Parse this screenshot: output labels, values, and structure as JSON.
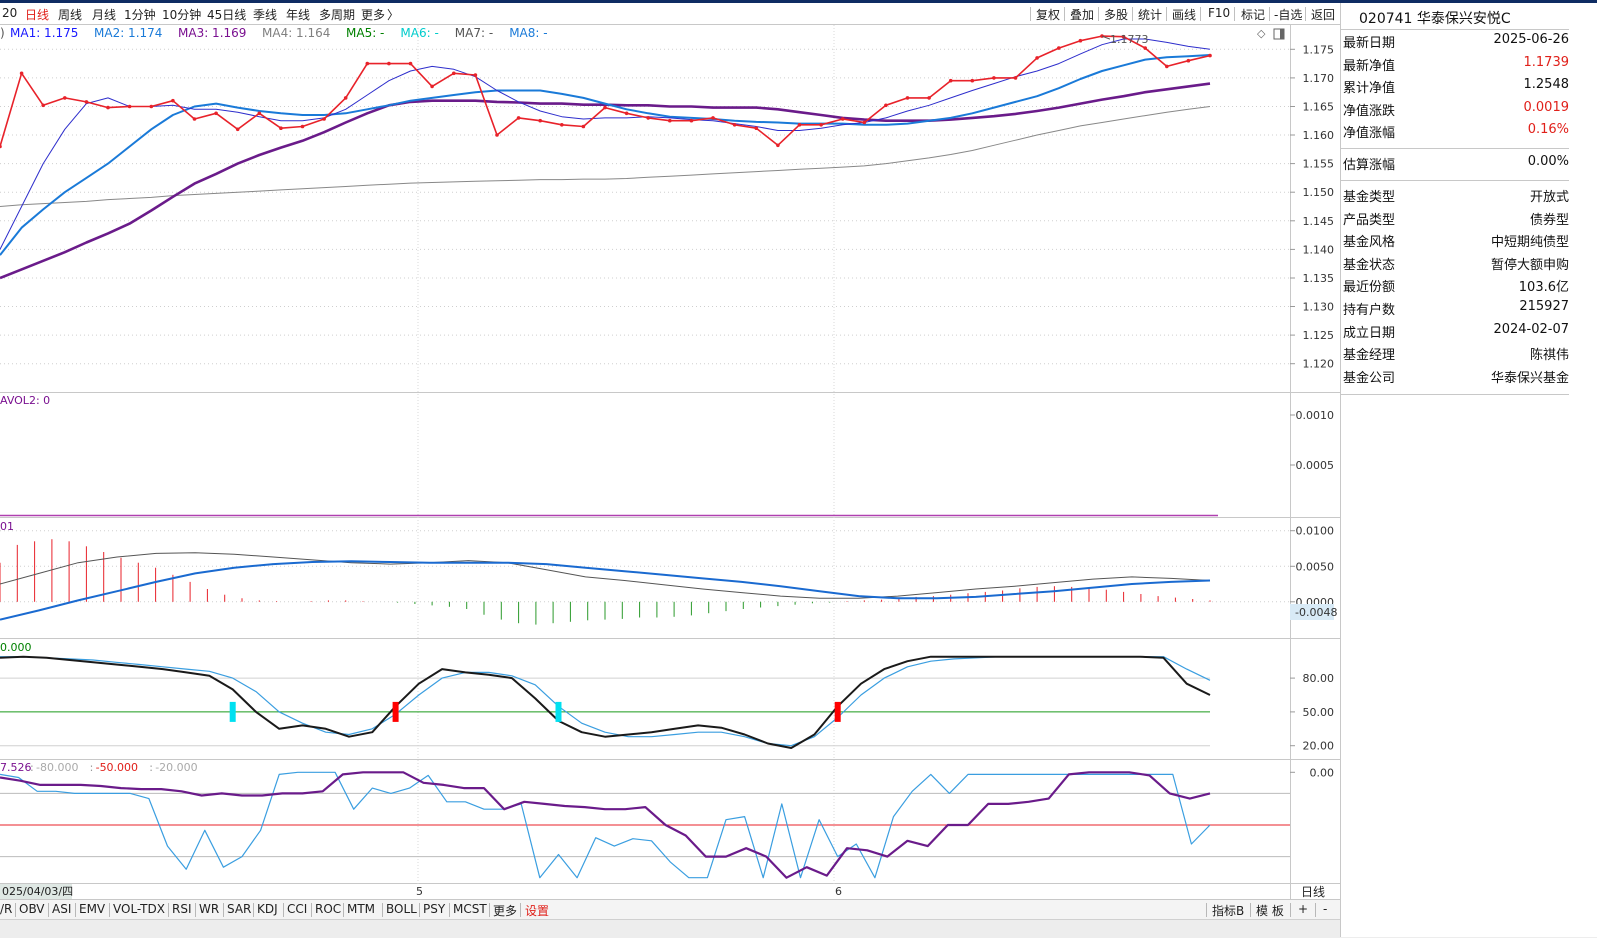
{
  "period_bar": {
    "items": [
      "20",
      "日线",
      "周线",
      "月线",
      "1分钟",
      "10分钟",
      "45日线",
      "季线",
      "年线",
      "多周期",
      "更多"
    ],
    "active_index": 1,
    "more_arrow": "〉"
  },
  "toolbar": {
    "buttons": [
      "复权",
      "叠加",
      "多股",
      "统计",
      "画线",
      "F10",
      "标记",
      "-自选",
      "返回"
    ]
  },
  "ma_legend": {
    "prefix": ")",
    "items": [
      {
        "label": "MA1: 1.175",
        "color": "#1a1aff"
      },
      {
        "label": "MA2: 1.174",
        "color": "#1a7ad8"
      },
      {
        "label": "MA3: 1.169",
        "color": "#7a1090"
      },
      {
        "label": "MA4: 1.164",
        "color": "#808080"
      },
      {
        "label": "MA5: -",
        "color": "#008000"
      },
      {
        "label": "MA6: -",
        "color": "#00cccc"
      },
      {
        "label": "MA7: -",
        "color": "#555555"
      },
      {
        "label": "MA8: -",
        "color": "#1a7ad8"
      }
    ]
  },
  "price_panel": {
    "ylim": [
      1.1175,
      1.1775
    ],
    "ticks": [
      "1.175",
      "1.170",
      "1.165",
      "1.160",
      "1.155",
      "1.150",
      "1.145",
      "1.140",
      "1.135",
      "1.130",
      "1.125",
      "1.120"
    ],
    "max_label": "1.1773"
  },
  "vol_panel": {
    "legend": "AVOL2: 0",
    "ticks": [
      "0.0010",
      "0.0005"
    ]
  },
  "macd_panel": {
    "legend": "01",
    "ticks": [
      "0.0100",
      "0.0050",
      "0.0000"
    ],
    "current_label": "-0.0048"
  },
  "kdj_panel": {
    "legend": "0.000",
    "ticks": [
      "80.00",
      "50.00",
      "20.00"
    ]
  },
  "wr_panel": {
    "legend_value": "7.526",
    "legend_items": [
      {
        "label": "-80.000",
        "color": "#aaaaaa"
      },
      {
        "label": "-50.000",
        "color": "#e0201a"
      },
      {
        "label": "-20.000",
        "color": "#aaaaaa"
      }
    ],
    "ticks": [
      "0.00"
    ]
  },
  "x_axis": {
    "date_label": "025/04/03/四",
    "month_labels": [
      "5",
      "6"
    ],
    "period_label": "日线"
  },
  "indicator_tabs": {
    "items": [
      "/R",
      "OBV",
      "ASI",
      "EMV",
      "VOL-TDX",
      "RSI",
      "WR",
      "SAR",
      "KDJ",
      "CCI",
      "ROC",
      "MTM",
      "BOLL",
      "PSY",
      "MCST",
      "更多",
      "设置"
    ],
    "right_items": [
      "指标B",
      "模 板",
      "+",
      "-"
    ]
  },
  "info_panel": {
    "title": "020741 华泰保兴安悦C",
    "rows1": [
      {
        "label": "最新日期",
        "value": "2025-06-26",
        "red": false
      },
      {
        "label": "最新净值",
        "value": "1.1739",
        "red": true
      },
      {
        "label": "累计净值",
        "value": "1.2548",
        "red": false
      },
      {
        "label": "净值涨跌",
        "value": "0.0019",
        "red": true
      },
      {
        "label": "净值涨幅",
        "value": "0.16%",
        "red": true
      }
    ],
    "rows2": [
      {
        "label": "估算涨幅",
        "value": "0.00%",
        "red": false
      }
    ],
    "rows3": [
      {
        "label": "基金类型",
        "value": "开放式",
        "red": false
      },
      {
        "label": "产品类型",
        "value": "债券型",
        "red": false
      },
      {
        "label": "基金风格",
        "value": "中短期纯债型",
        "red": false
      },
      {
        "label": "基金状态",
        "value": "暂停大额申购",
        "red": false
      },
      {
        "label": "最近份额",
        "value": "103.6亿",
        "red": false
      },
      {
        "label": "持有户数",
        "value": "215927",
        "red": false
      },
      {
        "label": "成立日期",
        "value": "2024-02-07",
        "red": false
      },
      {
        "label": "基金经理",
        "value": "陈祺伟",
        "red": false
      },
      {
        "label": "基金公司",
        "value": "华泰保兴基金",
        "red": false
      }
    ]
  },
  "chart_data": [
    {
      "type": "line",
      "name": "price",
      "ylim": [
        1.1175,
        1.1775
      ],
      "series": [
        {
          "name": "NAV",
          "color": "#e8222a",
          "values": [
            1.158,
            1.1708,
            1.1652,
            1.1665,
            1.1658,
            1.1648,
            1.165,
            1.165,
            1.166,
            1.1628,
            1.1638,
            1.161,
            1.1638,
            1.1612,
            1.1615,
            1.1628,
            1.1665,
            1.1725,
            1.1725,
            1.1725,
            1.1685,
            1.1708,
            1.1705,
            1.16,
            1.163,
            1.1625,
            1.1618,
            1.1615,
            1.1648,
            1.1638,
            1.163,
            1.1625,
            1.1625,
            1.163,
            1.1618,
            1.1612,
            1.1582,
            1.1618,
            1.1618,
            1.1628,
            1.1622,
            1.1652,
            1.1665,
            1.1665,
            1.1695,
            1.1695,
            1.17,
            1.17,
            1.1735,
            1.1752,
            1.1765,
            1.1773,
            1.1772,
            1.1752,
            1.172,
            1.173,
            1.1739
          ]
        },
        {
          "name": "MA1",
          "color": "#2e2ecc",
          "values": [
            1.14,
            1.1475,
            1.155,
            1.161,
            1.1655,
            1.1665,
            1.165,
            1.165,
            1.1652,
            1.1645,
            1.1645,
            1.164,
            1.1632,
            1.1625,
            1.1625,
            1.163,
            1.1645,
            1.167,
            1.1695,
            1.1712,
            1.172,
            1.1715,
            1.1702,
            1.1678,
            1.1658,
            1.1642,
            1.1632,
            1.1628,
            1.163,
            1.163,
            1.1632,
            1.163,
            1.1627,
            1.1625,
            1.162,
            1.1615,
            1.1608,
            1.1608,
            1.1612,
            1.1618,
            1.1622,
            1.163,
            1.1642,
            1.1652,
            1.1665,
            1.1678,
            1.169,
            1.1702,
            1.1712,
            1.1725,
            1.1742,
            1.1758,
            1.1768,
            1.1768,
            1.1762,
            1.1755,
            1.175
          ]
        },
        {
          "name": "MA2",
          "color": "#1a7ad8",
          "values": [
            1.139,
            1.1438,
            1.147,
            1.15,
            1.1525,
            1.155,
            1.158,
            1.161,
            1.1635,
            1.165,
            1.1655,
            1.1648,
            1.1642,
            1.1638,
            1.1635,
            1.1635,
            1.1638,
            1.1645,
            1.1652,
            1.166,
            1.1665,
            1.167,
            1.1675,
            1.1678,
            1.1678,
            1.1678,
            1.1672,
            1.1665,
            1.1655,
            1.1645,
            1.1638,
            1.1632,
            1.163,
            1.1628,
            1.1625,
            1.1623,
            1.1622,
            1.162,
            1.162,
            1.162,
            1.1618,
            1.1618,
            1.162,
            1.1625,
            1.163,
            1.1638,
            1.1648,
            1.1658,
            1.1668,
            1.1682,
            1.1698,
            1.1712,
            1.1722,
            1.1732,
            1.1736,
            1.1738,
            1.174
          ]
        },
        {
          "name": "MA3",
          "color": "#6a1b8a",
          "values": [
            1.135,
            1.1365,
            1.138,
            1.1395,
            1.1412,
            1.1428,
            1.1445,
            1.1468,
            1.1492,
            1.1515,
            1.1532,
            1.155,
            1.1565,
            1.1578,
            1.159,
            1.1605,
            1.1622,
            1.1638,
            1.1652,
            1.1658,
            1.166,
            1.166,
            1.166,
            1.1658,
            1.1657,
            1.1655,
            1.1655,
            1.1653,
            1.1653,
            1.1652,
            1.1652,
            1.165,
            1.165,
            1.1648,
            1.1648,
            1.1648,
            1.1645,
            1.164,
            1.1635,
            1.163,
            1.1627,
            1.1625,
            1.1625,
            1.1625,
            1.1627,
            1.163,
            1.1633,
            1.1637,
            1.1642,
            1.1648,
            1.1655,
            1.1662,
            1.1668,
            1.1675,
            1.168,
            1.1685,
            1.169
          ]
        },
        {
          "name": "MA4",
          "color": "#888888",
          "values": [
            1.1475,
            1.1478,
            1.148,
            1.1482,
            1.1484,
            1.1487,
            1.1489,
            1.1491,
            1.1494,
            1.1496,
            1.1498,
            1.15,
            1.1502,
            1.1504,
            1.1506,
            1.1508,
            1.151,
            1.1512,
            1.1514,
            1.1516,
            1.1517,
            1.1518,
            1.1519,
            1.152,
            1.1521,
            1.1522,
            1.1522,
            1.1523,
            1.1523,
            1.1524,
            1.1526,
            1.1528,
            1.153,
            1.1532,
            1.1534,
            1.1536,
            1.1538,
            1.154,
            1.1542,
            1.1544,
            1.1546,
            1.155,
            1.1555,
            1.156,
            1.1566,
            1.1573,
            1.1582,
            1.1591,
            1.16,
            1.1608,
            1.1616,
            1.1622,
            1.1628,
            1.1634,
            1.164,
            1.1645,
            1.165
          ]
        }
      ]
    },
    {
      "type": "line",
      "name": "avol",
      "ylim": [
        0,
        0.0012
      ],
      "series": [
        {
          "name": "AVOL2",
          "values": [
            0,
            0
          ]
        }
      ]
    },
    {
      "type": "bar",
      "name": "macd",
      "ylim": [
        -0.0048,
        0.0115
      ],
      "bars": [
        0.0055,
        0.008,
        0.0085,
        0.0088,
        0.0085,
        0.0078,
        0.007,
        0.0062,
        0.0055,
        0.0048,
        0.0038,
        0.0028,
        0.0018,
        0.001,
        0.0005,
        0.0002,
        0.0001,
        0.0,
        0.0001,
        0.0002,
        0.0002,
        0.0001,
        0.0,
        -0.0001,
        -0.0003,
        -0.0005,
        -0.0007,
        -0.001,
        -0.0018,
        -0.0025,
        -0.003,
        -0.0032,
        -0.003,
        -0.0028,
        -0.0026,
        -0.0025,
        -0.0024,
        -0.0022,
        -0.0022,
        -0.0021,
        -0.0019,
        -0.0016,
        -0.0013,
        -0.001,
        -0.0008,
        -0.0006,
        -0.0004,
        -0.0002,
        -0.0001,
        0.0001,
        0.0002,
        0.0003,
        0.0005,
        0.0007,
        0.0008,
        0.001,
        0.0012,
        0.0014,
        0.0016,
        0.0019,
        0.0021,
        0.0022,
        0.0021,
        0.0019,
        0.0017,
        0.0014,
        0.0011,
        0.0008,
        0.0006,
        0.0004,
        0.0002
      ],
      "series": [
        {
          "name": "DIF",
          "color": "#555555",
          "values": [
            0.0025,
            0.004,
            0.0055,
            0.0063,
            0.0068,
            0.0069,
            0.0067,
            0.0063,
            0.0059,
            0.0055,
            0.0053,
            0.0055,
            0.0058,
            0.0055,
            0.0045,
            0.0035,
            0.003,
            0.0024,
            0.0018,
            0.0013,
            0.0008,
            0.0005,
            0.0005,
            0.0008,
            0.0013,
            0.0018,
            0.0022,
            0.0027,
            0.0032,
            0.0035,
            0.0033,
            0.003
          ]
        },
        {
          "name": "DEA",
          "color": "#1a6ad0",
          "values": [
            -0.0025,
            -0.0012,
            0.0002,
            0.0015,
            0.0028,
            0.004,
            0.0048,
            0.0053,
            0.0056,
            0.0057,
            0.0056,
            0.0055,
            0.0055,
            0.0055,
            0.0053,
            0.0048,
            0.0043,
            0.0038,
            0.0033,
            0.0028,
            0.0022,
            0.0015,
            0.0008,
            0.0005,
            0.0005,
            0.0007,
            0.0011,
            0.0015,
            0.002,
            0.0025,
            0.0028,
            0.003
          ]
        }
      ]
    },
    {
      "type": "line",
      "name": "kdj",
      "ylim": [
        10,
        112
      ],
      "reference_lines": [
        80,
        50,
        20
      ],
      "series": [
        {
          "name": "K",
          "color": "#1a1a1a",
          "values": [
            98,
            99,
            98,
            96,
            94,
            92,
            90,
            88,
            85,
            82,
            70,
            50,
            35,
            38,
            35,
            28,
            32,
            55,
            75,
            88,
            85,
            83,
            80,
            62,
            42,
            32,
            28,
            30,
            32,
            35,
            38,
            36,
            30,
            22,
            18,
            30,
            55,
            75,
            88,
            95,
            99,
            99,
            99,
            99,
            99,
            99,
            99,
            99,
            99,
            99,
            98,
            75,
            65
          ]
        },
        {
          "name": "D",
          "color": "#3a9ee0",
          "values": [
            99,
            99,
            98,
            97,
            96,
            94,
            92,
            90,
            88,
            86,
            80,
            68,
            50,
            40,
            32,
            30,
            35,
            48,
            65,
            80,
            85,
            85,
            82,
            74,
            55,
            40,
            32,
            28,
            28,
            30,
            32,
            32,
            28,
            22,
            20,
            28,
            45,
            65,
            80,
            90,
            95,
            97,
            98,
            99,
            99,
            99,
            99,
            99,
            99,
            99,
            99,
            88,
            78
          ]
        }
      ],
      "cross_marks": [
        {
          "index": 10,
          "type": "down"
        },
        {
          "index": 17,
          "type": "up"
        },
        {
          "index": 24,
          "type": "down"
        },
        {
          "index": 36,
          "type": "up"
        }
      ]
    },
    {
      "type": "line",
      "name": "wr",
      "ylim": [
        -105,
        5
      ],
      "reference_lines": [
        -80,
        -50,
        -20
      ],
      "series": [
        {
          "name": "WR1",
          "color": "#3a9ee0",
          "values": [
            -2,
            -5,
            -18,
            -18,
            -20,
            -20,
            -20,
            -20,
            -25,
            -70,
            -92,
            -55,
            -90,
            -80,
            -55,
            -2,
            0,
            0,
            0,
            -35,
            -15,
            -20,
            -15,
            -3,
            -28,
            -28,
            -35,
            -35,
            -30,
            -100,
            -78,
            -100,
            -62,
            -70,
            -63,
            -65,
            -85,
            -100,
            -100,
            -45,
            -42,
            -100,
            -30,
            -100,
            -45,
            -80,
            -68,
            -100,
            -42,
            -18,
            -2,
            -20,
            -2,
            -2,
            -2,
            -2,
            -2,
            -2,
            -2,
            -2,
            -2,
            -2,
            -2,
            -2,
            -68,
            -50
          ]
        },
        {
          "name": "WR2",
          "color": "#6a1b8a",
          "values": [
            -5,
            -8,
            -12,
            -12,
            -12,
            -13,
            -15,
            -16,
            -16,
            -18,
            -22,
            -20,
            -22,
            -22,
            -20,
            -20,
            -18,
            -2,
            0,
            0,
            0,
            -10,
            -12,
            -15,
            -15,
            -35,
            -28,
            -30,
            -32,
            -33,
            -35,
            -35,
            -33,
            -50,
            -60,
            -80,
            -80,
            -72,
            -80,
            -100,
            -90,
            -98,
            -72,
            -74,
            -80,
            -65,
            -70,
            -50,
            -50,
            -30,
            -30,
            -28,
            -25,
            -2,
            0,
            0,
            0,
            -3,
            -20,
            -25,
            -20
          ]
        }
      ]
    }
  ]
}
